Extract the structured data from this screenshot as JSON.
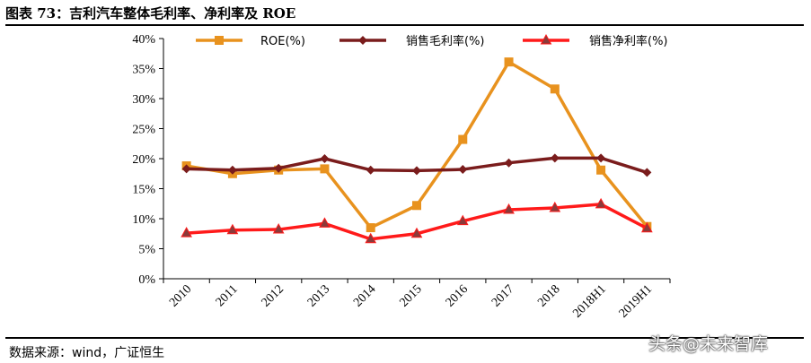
{
  "header": {
    "title": "图表 73：吉利汽车整体毛利率、净利率及 ROE"
  },
  "footer": {
    "source": "数据来源：wind，广证恒生",
    "watermark": "头条@未来智库"
  },
  "chart_data": {
    "type": "line",
    "categories": [
      "2010",
      "2011",
      "2012",
      "2013",
      "2014",
      "2015",
      "2016",
      "2017",
      "2018",
      "2018H1",
      "2019H1"
    ],
    "series": [
      {
        "name": "ROE(%)",
        "color": "#e8921e",
        "marker": "square",
        "values": [
          18.8,
          17.5,
          18.1,
          18.3,
          8.5,
          12.2,
          23.2,
          36.1,
          31.6,
          18.1,
          8.7
        ]
      },
      {
        "name": "销售毛利率(%)",
        "color": "#7a1c1c",
        "marker": "diamond",
        "values": [
          18.3,
          18.1,
          18.4,
          20.0,
          18.1,
          18.0,
          18.2,
          19.3,
          20.1,
          20.1,
          17.7
        ]
      },
      {
        "name": "销售净利率(%)",
        "color": "#ff1a1a",
        "marker": "triangle",
        "values": [
          7.6,
          8.1,
          8.2,
          9.2,
          6.6,
          7.5,
          9.6,
          11.5,
          11.8,
          12.4,
          8.4
        ]
      }
    ],
    "ylim": [
      0,
      40
    ],
    "yticks": [
      "0%",
      "5%",
      "10%",
      "15%",
      "20%",
      "25%",
      "30%",
      "35%",
      "40%"
    ],
    "grid": false,
    "legend": "top"
  }
}
